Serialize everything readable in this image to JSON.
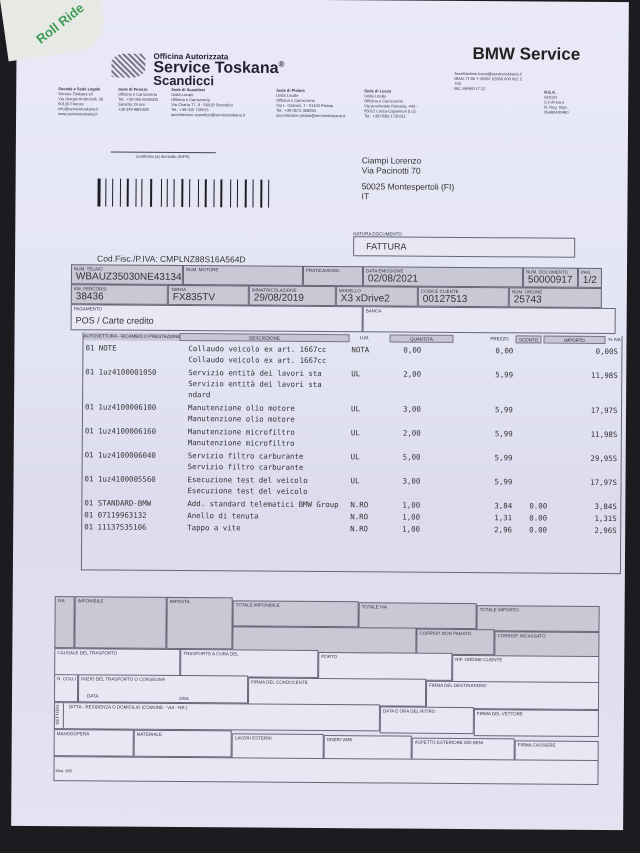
{
  "sticker": {
    "text": "Roll Ride"
  },
  "header": {
    "officina": "Officina Autorizzata",
    "company": "Service Toskana",
    "reg": "®",
    "city": "Scandicci",
    "brand": "BMW Service",
    "sedi": [
      {
        "title": "Società e Sede Legale",
        "lines": [
          "Service Toskana srl",
          "Via Giorgio Ambrosoli, 30",
          "50126 Firenze",
          "info@servicetoskana.it",
          "www.servicetoskana.it"
        ]
      },
      {
        "title": "Sede di Firenze",
        "lines": [
          "Officina e Carrozzeria",
          "Tel.: +39 055 6530000",
          "Servizio 24 ore:",
          "+39 349 9860030"
        ]
      },
      {
        "title": "Sede di Scandicci",
        "lines": [
          "Unità Locale",
          "Officina e Carrozzeria",
          "Via Charta 77, 9 - 50018 Scandicci",
          "Tel.: +39 055 735015",
          "accettazione.scandicci@servicetoskana.it"
        ]
      },
      {
        "title": "Sede di Pistoia",
        "lines": [
          "Unità Locale",
          "Officina e Carrozzeria",
          "Via L. Galvani, 7 - 51100 Pistoia",
          "Tel.: +39 0573 368284",
          "accettazione.pistoia@servicetoskana.it"
        ]
      },
      {
        "title": "Sede di Lucca",
        "lines": [
          "Unità Locale",
          "Officina e Carrozzeria",
          "Via provinciale Romana, 443 -",
          "55012 Lucca-Capannori (LU)",
          "Tel.: +39 0583 1730211"
        ]
      },
      {
        "title": "",
        "lines": [
          "Accettazione.lucca@servicetoskana.it",
          "IBAN: IT 86 Y 05387 02800 000 002 2",
          "700",
          "BIC: BPMO IT 22"
        ]
      },
      {
        "title": "R.E.A.",
        "lines": [
          "620101",
          "C.F./P.Iva e",
          "N. Reg. Impr.",
          "05480430480"
        ]
      }
    ]
  },
  "recipient": {
    "cert_label": "Certificato (a) domicilio (INPS)",
    "name": "Ciampi Lorenzo",
    "street": "Via Pacinotti 70",
    "city": "50025 Montespertoli (FI)",
    "country": "IT"
  },
  "doc_type": {
    "label": "NATURA DOCUMENTO",
    "value": "FATTURA"
  },
  "codfisc": "Cod.Fisc./P.IVA: CMPLNZ88S16A564D",
  "fields": {
    "telaio": {
      "label": "NUM. TELAIO",
      "value": "WBAUZ35030NE43134"
    },
    "motore": {
      "label": "NUM. MOTORE",
      "value": ""
    },
    "pratica": {
      "label": "PRATICA/ANNO",
      "value": ""
    },
    "data_emissione": {
      "label": "DATA EMISSIONE",
      "value": "02/08/2021"
    },
    "num_documento": {
      "label": "NUM. DOCUMENTO",
      "value": "50000917"
    },
    "pag": {
      "label": "PAG.",
      "value": "1/2"
    },
    "km": {
      "label": "KM. PERCORSI",
      "value": "38436"
    },
    "targa": {
      "label": "TARGA",
      "value": "FX835TV"
    },
    "immatricolazione": {
      "label": "IMMATRICOLAZIONE",
      "value": "29/08/2019"
    },
    "modello": {
      "label": "MODELLO",
      "value": "X3 xDrive2"
    },
    "codice_cliente": {
      "label": "CODICE CLIENTE",
      "value": "00127513"
    },
    "num_ordine": {
      "label": "NUM. ORDINE",
      "value": "25743"
    },
    "pagamento": {
      "label": "PAGAMENTO",
      "value": "POS / Carte credito"
    },
    "banca": {
      "label": "BANCA",
      "value": ""
    }
  },
  "table": {
    "headers": {
      "code": "AUTOVETTURA - RICAMBIO O PRESTAZIONE",
      "desc": "DESCRIZIONE",
      "um": "U.M.",
      "qty": "QUANTITÀ",
      "price": "PREZZO",
      "disc": "SCONTO",
      "amount": "IMPORTO",
      "iva": "% IVA"
    },
    "rows": [
      {
        "code": "01 NOTE",
        "desc": [
          "Collaudo veicolo ex art. 1667cc",
          "Collaudo veicolo ex art. 1667cc"
        ],
        "um": "NOTA",
        "qty": "0,00",
        "price": "0,00",
        "disc": "",
        "amount": "0,00",
        "iva": "S"
      },
      {
        "code": "01 1uz4100001050",
        "desc": [
          "Servizio entità dei lavori sta",
          "Servizio entità dei lavori sta",
          "ndard"
        ],
        "um": "UL",
        "qty": "2,00",
        "price": "5,99",
        "disc": "",
        "amount": "11,98",
        "iva": "S"
      },
      {
        "code": "01 1uz4100006100",
        "desc": [
          "Manutenzione olio motore",
          "Manutenzione olio motore"
        ],
        "um": "UL",
        "qty": "3,00",
        "price": "5,99",
        "disc": "",
        "amount": "17,97",
        "iva": "S"
      },
      {
        "code": "01 1uz4100006160",
        "desc": [
          "Manutenzione microfiltro",
          "Manutenzione microfiltro"
        ],
        "um": "UL",
        "qty": "2,00",
        "price": "5,99",
        "disc": "",
        "amount": "11,98",
        "iva": "S"
      },
      {
        "code": "01 1uz4100006040",
        "desc": [
          "Servizio filtro carburante",
          "Servizio filtro carburante"
        ],
        "um": "UL",
        "qty": "5,00",
        "price": "5,99",
        "disc": "",
        "amount": "29,95",
        "iva": "S"
      },
      {
        "code": "01 1uz4100005560",
        "desc": [
          "Esecuzione test del veicolo",
          "Esecuzione test del veicolo"
        ],
        "um": "UL",
        "qty": "3,00",
        "price": "5,99",
        "disc": "",
        "amount": "17,97",
        "iva": "S"
      },
      {
        "code": "01 STANDARD-BMW",
        "desc": [
          "Add. standard telematici  BMW Group"
        ],
        "um": "N.RO",
        "qty": "1,00",
        "price": "3,84",
        "disc": "0.00",
        "amount": "3,84",
        "iva": "S"
      },
      {
        "code": "01 07119963132",
        "desc": [
          "Anello di tenuta"
        ],
        "um": "N.RO",
        "qty": "1,00",
        "price": "1,31",
        "disc": "0.00",
        "amount": "1,31",
        "iva": "S"
      },
      {
        "code": "01 11137535106",
        "desc": [
          "Tappo a vite"
        ],
        "um": "N.RO",
        "qty": "1,00",
        "price": "2,96",
        "disc": "0.00",
        "amount": "2,96",
        "iva": "S"
      }
    ]
  },
  "footer": {
    "iva": "IVA",
    "imponibile": "IMPONIBILE",
    "imposta": "IMPOSTA",
    "totale_imponibile": "TOTALE IMPONIBILE",
    "totale_iva": "TOTALE IVA",
    "totale_importo": "TOTALE IMPORTO",
    "corrisp_non_pagato": "CORRISP. NON PAGATO",
    "corrisp_incassato": "CORRISP. INCASSATO",
    "causale": "CAUSALE DEL TRASPORTO",
    "trasporto_cura": "TRASPORTO A CURA DEL",
    "porto": "PORTO",
    "rif_ordine": "RIF. ORDINE CLIENTE",
    "n_colli": "N. COLLI",
    "inizio_trasporto": "INIZIO DEL TRASPORTO O CONSEGNA",
    "data": "DATA",
    "ora": "ORA",
    "firma_conducente": "FIRMA DEL CONDUCENTE",
    "firma_destinatario": "FIRMA DEL DESTINATARIO",
    "vettori": "VETTORI",
    "ditta": "DITTA - RESIDENZA O DOMICILIO (COMUNE - VIA - NR.)",
    "data_ritiro": "DATA E ORA DEL RITIRO",
    "firma_vettore": "FIRMA DEL VETTORE",
    "manodopera": "MANODOPERA",
    "materiale": "MATERIALE",
    "lavori_esterni": "LAVORI ESTERNI",
    "oneri_vari": "ONERI VARI",
    "aspetto": "ASPETTO ESTERIORE DEI BENI",
    "firma_cassiere": "FIRMA CASSIERE",
    "mod": "Mod. 805"
  }
}
